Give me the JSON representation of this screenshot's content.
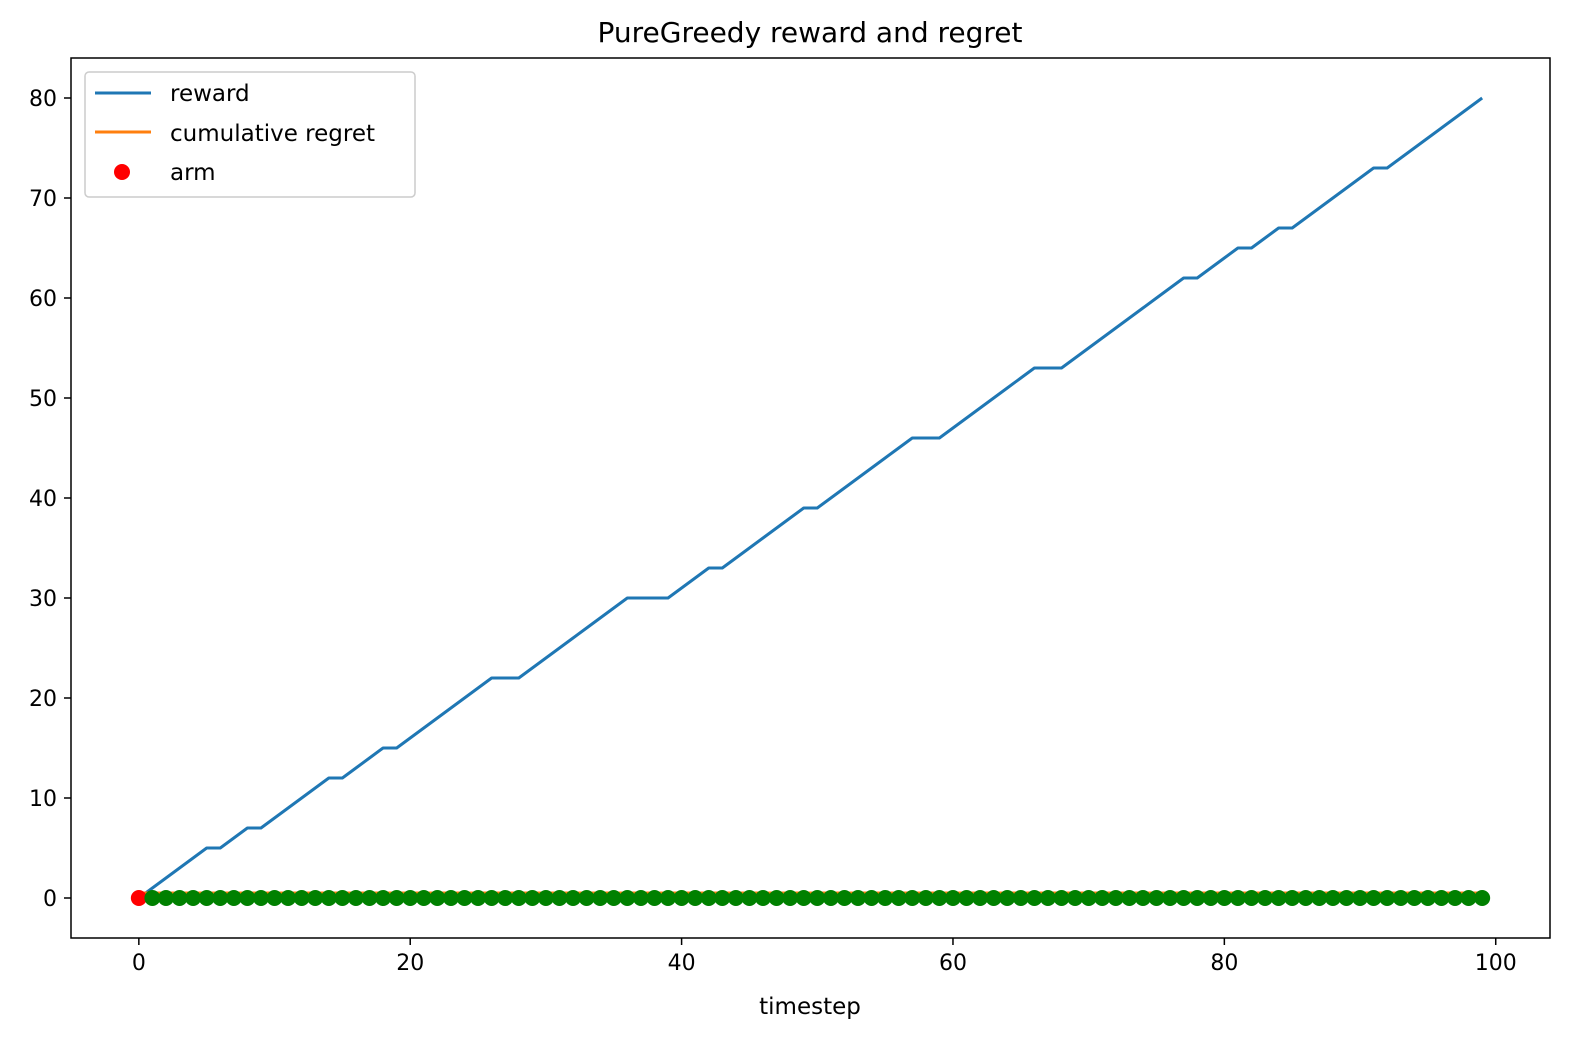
{
  "chart_data": {
    "type": "line",
    "title": "PureGreedy reward and regret",
    "xlabel": "timestep",
    "ylabel": "",
    "xlim": [
      -5,
      104
    ],
    "ylim": [
      -4,
      84
    ],
    "xticks": [
      0,
      20,
      40,
      60,
      80,
      100
    ],
    "yticks": [
      0,
      10,
      20,
      30,
      40,
      50,
      60,
      70,
      80
    ],
    "grid": false,
    "legend_position": "top-left",
    "colors": {
      "reward": "#1f77b4",
      "cumulative_regret": "#ff7f0e",
      "arm_selected": "#ff0000",
      "arm_other": "#008000"
    },
    "series": [
      {
        "name": "reward",
        "kind": "line",
        "x": [
          0,
          1,
          2,
          3,
          4,
          5,
          6,
          7,
          8,
          9,
          10,
          11,
          12,
          13,
          14,
          15,
          16,
          17,
          18,
          19,
          20,
          21,
          22,
          23,
          24,
          25,
          26,
          27,
          28,
          29,
          30,
          31,
          32,
          33,
          34,
          35,
          36,
          37,
          38,
          39,
          40,
          41,
          42,
          43,
          44,
          45,
          46,
          47,
          48,
          49,
          50,
          51,
          52,
          53,
          54,
          55,
          56,
          57,
          58,
          59,
          60,
          61,
          62,
          63,
          64,
          65,
          66,
          67,
          68,
          69,
          70,
          71,
          72,
          73,
          74,
          75,
          76,
          77,
          78,
          79,
          80,
          81,
          82,
          83,
          84,
          85,
          86,
          87,
          88,
          89,
          90,
          91,
          92,
          93,
          94,
          95,
          96,
          97,
          98,
          99
        ],
        "values": [
          0,
          1,
          2,
          3,
          4,
          5,
          5,
          6,
          7,
          7,
          8,
          9,
          10,
          11,
          12,
          12,
          13,
          14,
          15,
          15,
          16,
          17,
          18,
          19,
          20,
          21,
          22,
          22,
          22,
          23,
          24,
          25,
          26,
          27,
          28,
          29,
          30,
          30,
          30,
          30,
          31,
          32,
          33,
          33,
          34,
          35,
          36,
          37,
          38,
          39,
          39,
          40,
          41,
          42,
          43,
          44,
          45,
          46,
          46,
          46,
          47,
          48,
          49,
          50,
          51,
          52,
          53,
          53,
          53,
          54,
          55,
          56,
          57,
          58,
          59,
          60,
          61,
          62,
          62,
          63,
          64,
          65,
          65,
          66,
          67,
          67,
          68,
          69,
          70,
          71,
          72,
          73,
          73,
          74,
          75,
          76,
          77,
          78,
          79,
          80
        ]
      },
      {
        "name": "cumulative regret",
        "kind": "line",
        "x": [
          0,
          99
        ],
        "values": [
          0.5,
          0.5
        ]
      },
      {
        "name": "arm",
        "kind": "scatter",
        "x": [
          0,
          1,
          2,
          3,
          4,
          5,
          6,
          7,
          8,
          9,
          10,
          11,
          12,
          13,
          14,
          15,
          16,
          17,
          18,
          19,
          20,
          21,
          22,
          23,
          24,
          25,
          26,
          27,
          28,
          29,
          30,
          31,
          32,
          33,
          34,
          35,
          36,
          37,
          38,
          39,
          40,
          41,
          42,
          43,
          44,
          45,
          46,
          47,
          48,
          49,
          50,
          51,
          52,
          53,
          54,
          55,
          56,
          57,
          58,
          59,
          60,
          61,
          62,
          63,
          64,
          65,
          66,
          67,
          68,
          69,
          70,
          71,
          72,
          73,
          74,
          75,
          76,
          77,
          78,
          79,
          80,
          81,
          82,
          83,
          84,
          85,
          86,
          87,
          88,
          89,
          90,
          91,
          92,
          93,
          94,
          95,
          96,
          97,
          98,
          99
        ],
        "values": [
          0,
          0,
          0,
          0,
          0,
          0,
          0,
          0,
          0,
          0,
          0,
          0,
          0,
          0,
          0,
          0,
          0,
          0,
          0,
          0,
          0,
          0,
          0,
          0,
          0,
          0,
          0,
          0,
          0,
          0,
          0,
          0,
          0,
          0,
          0,
          0,
          0,
          0,
          0,
          0,
          0,
          0,
          0,
          0,
          0,
          0,
          0,
          0,
          0,
          0,
          0,
          0,
          0,
          0,
          0,
          0,
          0,
          0,
          0,
          0,
          0,
          0,
          0,
          0,
          0,
          0,
          0,
          0,
          0,
          0,
          0,
          0,
          0,
          0,
          0,
          0,
          0,
          0,
          0,
          0,
          0,
          0,
          0,
          0,
          0,
          0,
          0,
          0,
          0,
          0,
          0,
          0,
          0,
          0,
          0,
          0,
          0,
          0,
          0,
          0
        ],
        "selected_first_point": true
      }
    ],
    "legend": [
      "reward",
      "cumulative regret",
      "arm"
    ]
  }
}
